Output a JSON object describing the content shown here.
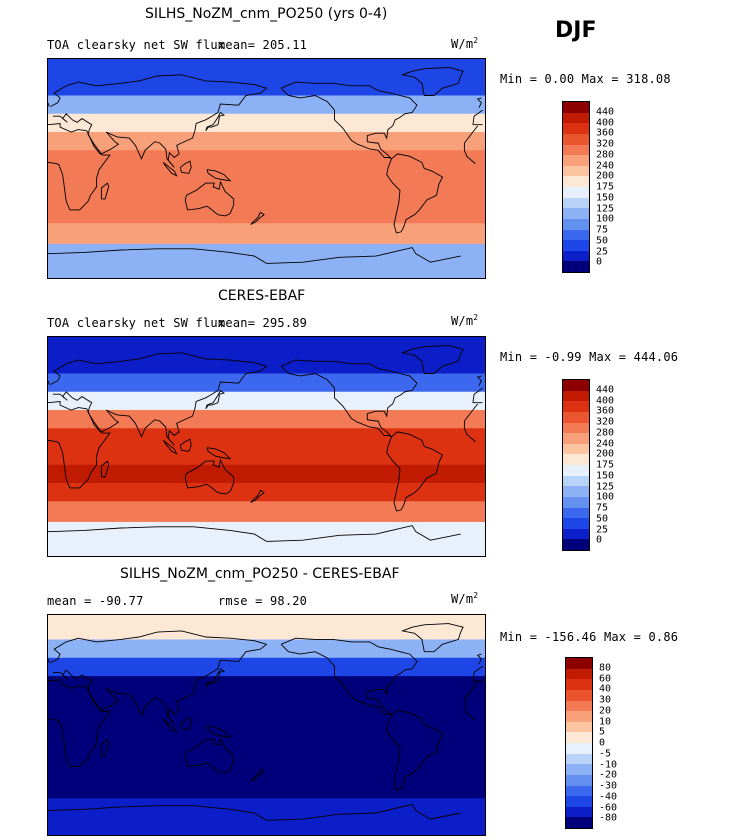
{
  "season": "DJF",
  "colors": {
    "std": [
      "#00007a",
      "#0c1ec8",
      "#1e46e6",
      "#3c68f0",
      "#6490f2",
      "#8cb2f5",
      "#b8d2f8",
      "#e8f1fb",
      "#fde8d6",
      "#fbc5a2",
      "#f7a07a",
      "#f27a55",
      "#ea5530",
      "#dc3212",
      "#c01a00",
      "#8c0000"
    ],
    "diff": [
      "#00007a",
      "#0c1ec8",
      "#1e46e6",
      "#3c68f0",
      "#6490f2",
      "#8cb2f5",
      "#b8d2f8",
      "#e8f1fb",
      "#fde8d6",
      "#fbc5a2",
      "#f7a07a",
      "#f27a55",
      "#ea5530",
      "#dc3212",
      "#c01a00",
      "#8c0000"
    ]
  },
  "panels": [
    {
      "title": "SILHS_NoZM_cnm_PO250 (yrs 0-4)",
      "field": "TOA clearsky net SW flux",
      "stat": "mean= 205.11",
      "stat2": "",
      "units_base": "W/m",
      "units_exp": "2",
      "minmax": "Min =   0.00 Max = 318.08",
      "cbar_labels": [
        "440",
        "400",
        "360",
        "320",
        "280",
        "240",
        "200",
        "175",
        "150",
        "125",
        "100",
        "75",
        "50",
        "25",
        "0"
      ]
    },
    {
      "title": "CERES-EBAF",
      "field": "TOA clearsky net SW flux",
      "stat": "mean= 295.89",
      "stat2": "",
      "units_base": "W/m",
      "units_exp": "2",
      "minmax": "Min =  -0.99 Max = 444.06",
      "cbar_labels": [
        "440",
        "400",
        "360",
        "320",
        "280",
        "240",
        "200",
        "175",
        "150",
        "125",
        "100",
        "75",
        "50",
        "25",
        "0"
      ]
    },
    {
      "title": "SILHS_NoZM_cnm_PO250 - CERES-EBAF",
      "field": "",
      "stat": "mean = -90.77",
      "stat2": "rmse =  98.20",
      "units_base": "W/m",
      "units_exp": "2",
      "minmax": "Min = -156.46 Max =   0.86",
      "cbar_labels": [
        "80",
        "60",
        "40",
        "30",
        "20",
        "10",
        "5",
        "0",
        "-5",
        "-10",
        "-20",
        "-30",
        "-40",
        "-60",
        "-80"
      ]
    }
  ],
  "chart_data": [
    {
      "type": "heatmap",
      "title": "SILHS_NoZM_cnm_PO250 (yrs 0-4)",
      "variable": "TOA clearsky net SW flux",
      "units": "W/m2",
      "mean": 205.11,
      "min": 0.0,
      "max": 318.08,
      "levels": [
        0,
        25,
        50,
        75,
        100,
        125,
        150,
        175,
        200,
        240,
        280,
        320,
        360,
        400,
        440
      ],
      "zonal_bands": [
        {
          "lat": [
            90,
            60
          ],
          "value": 40
        },
        {
          "lat": [
            60,
            45
          ],
          "value": 110
        },
        {
          "lat": [
            45,
            30
          ],
          "value": 185
        },
        {
          "lat": [
            30,
            15
          ],
          "value": 245
        },
        {
          "lat": [
            15,
            -45
          ],
          "value": 300
        },
        {
          "lat": [
            -45,
            -62
          ],
          "value": 260
        },
        {
          "lat": [
            -62,
            -90
          ],
          "value": 120
        }
      ]
    },
    {
      "type": "heatmap",
      "title": "CERES-EBAF",
      "variable": "TOA clearsky net SW flux",
      "units": "W/m2",
      "mean": 295.89,
      "min": -0.99,
      "max": 444.06,
      "levels": [
        0,
        25,
        50,
        75,
        100,
        125,
        150,
        175,
        200,
        240,
        280,
        320,
        360,
        400,
        440
      ],
      "zonal_bands": [
        {
          "lat": [
            90,
            60
          ],
          "value": 10
        },
        {
          "lat": [
            60,
            45
          ],
          "value": 60
        },
        {
          "lat": [
            45,
            30
          ],
          "value": 170
        },
        {
          "lat": [
            30,
            15
          ],
          "value": 290
        },
        {
          "lat": [
            15,
            -15
          ],
          "value": 370
        },
        {
          "lat": [
            -15,
            -30
          ],
          "value": 430
        },
        {
          "lat": [
            -30,
            -45
          ],
          "value": 390
        },
        {
          "lat": [
            -45,
            -62
          ],
          "value": 300
        },
        {
          "lat": [
            -62,
            -90
          ],
          "value": 150
        }
      ]
    },
    {
      "type": "heatmap",
      "title": "SILHS_NoZM_cnm_PO250 - CERES-EBAF",
      "variable": "TOA clearsky net SW flux",
      "units": "W/m2",
      "mean": -90.77,
      "rmse": 98.2,
      "min": -156.46,
      "max": 0.86,
      "levels": [
        -80,
        -60,
        -40,
        -30,
        -20,
        -10,
        -5,
        0,
        5,
        10,
        20,
        30,
        40,
        60,
        80
      ],
      "zonal_bands": [
        {
          "lat": [
            90,
            70
          ],
          "value": 2
        },
        {
          "lat": [
            70,
            55
          ],
          "value": -15
        },
        {
          "lat": [
            55,
            40
          ],
          "value": -45
        },
        {
          "lat": [
            40,
            -60
          ],
          "value": -90
        },
        {
          "lat": [
            -60,
            -90
          ],
          "value": -70
        }
      ]
    }
  ]
}
